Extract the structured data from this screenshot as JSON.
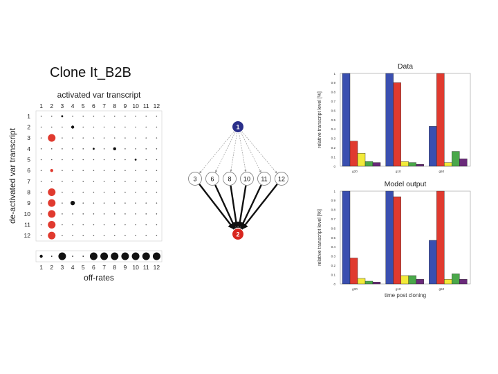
{
  "title": "Clone It_B2B",
  "colors": {
    "blue": "#3a4fb0",
    "red": "#e03a2f",
    "yellow": "#f2ea3a",
    "green": "#4aa84a",
    "purple": "#6a2a7a",
    "gridblack": "#111111",
    "node_blue": "#2a2f8a",
    "node_red": "#d8261e"
  },
  "chart_data": [
    {
      "type": "scatter",
      "panel": "matrix",
      "xlabel": "activated var transcript",
      "ylabel": "de-activated var transcript",
      "x_ticks": [
        "1",
        "2",
        "3",
        "4",
        "5",
        "6",
        "7",
        "8",
        "9",
        "10",
        "11",
        "12"
      ],
      "y_ticks": [
        "1",
        "2",
        "3",
        "4",
        "5",
        "6",
        "7",
        "8",
        "9",
        "10",
        "11",
        "12"
      ],
      "red_points": [
        {
          "x": 2,
          "y": 3,
          "size": "large"
        },
        {
          "x": 2,
          "y": 6,
          "size": "small"
        },
        {
          "x": 2,
          "y": 8,
          "size": "large"
        },
        {
          "x": 2,
          "y": 9,
          "size": "large"
        },
        {
          "x": 2,
          "y": 10,
          "size": "large"
        },
        {
          "x": 2,
          "y": 11,
          "size": "large"
        },
        {
          "x": 2,
          "y": 12,
          "size": "large"
        }
      ],
      "black_points": [
        {
          "x": 4,
          "y": 2,
          "size": "small"
        },
        {
          "x": 4,
          "y": 9,
          "size": "medium"
        },
        {
          "x": 8,
          "y": 4,
          "size": "small"
        },
        {
          "x": 3,
          "y": 1,
          "size": "tiny"
        },
        {
          "x": 6,
          "y": 4,
          "size": "tiny"
        },
        {
          "x": 10,
          "y": 5,
          "size": "tiny"
        }
      ],
      "offrates": {
        "xlabel": "off-rates",
        "ticks": [
          "1",
          "2",
          "3",
          "4",
          "5",
          "6",
          "7",
          "8",
          "9",
          "10",
          "11",
          "12"
        ],
        "sizes": [
          "small",
          "tiny",
          "large",
          "tiny",
          "tiny",
          "large",
          "large",
          "large",
          "large",
          "large",
          "large",
          "large"
        ]
      }
    },
    {
      "type": "network",
      "panel": "graph",
      "source": "1",
      "middle": [
        "3",
        "6",
        "8",
        "10",
        "11",
        "12"
      ],
      "target": "2"
    },
    {
      "type": "bar",
      "panel": "data",
      "title": "Data",
      "ylabel": "relative transcript level [%]",
      "y_ticks": [
        "0",
        "0.1",
        "0.2",
        "0.3",
        "0.4",
        "0.5",
        "0.6",
        "0.7",
        "0.8",
        "0.9",
        "1"
      ],
      "ylim": [
        0,
        1
      ],
      "categories": [
        "g20",
        "g10",
        "g50"
      ],
      "series_colors": [
        "blue",
        "red",
        "yellow",
        "green",
        "purple"
      ],
      "groups": [
        [
          1.0,
          0.27,
          0.14,
          0.05,
          0.04
        ],
        [
          1.0,
          0.9,
          0.05,
          0.04,
          0.02
        ],
        [
          0.43,
          1.0,
          0.04,
          0.16,
          0.08
        ]
      ]
    },
    {
      "type": "bar",
      "panel": "model",
      "title": "Model output",
      "ylabel": "relative transcript level [%]",
      "xlabel": "time post cloning",
      "y_ticks": [
        "0",
        "0.1",
        "0.2",
        "0.3",
        "0.4",
        "0.5",
        "0.6",
        "0.7",
        "0.8",
        "0.9",
        "1"
      ],
      "ylim": [
        0,
        1
      ],
      "categories": [
        "g20",
        "g10",
        "g50"
      ],
      "series_colors": [
        "blue",
        "red",
        "yellow",
        "green",
        "purple"
      ],
      "groups": [
        [
          1.0,
          0.28,
          0.06,
          0.03,
          0.02
        ],
        [
          1.0,
          0.94,
          0.09,
          0.09,
          0.05
        ],
        [
          0.47,
          1.0,
          0.05,
          0.11,
          0.05
        ]
      ]
    }
  ]
}
